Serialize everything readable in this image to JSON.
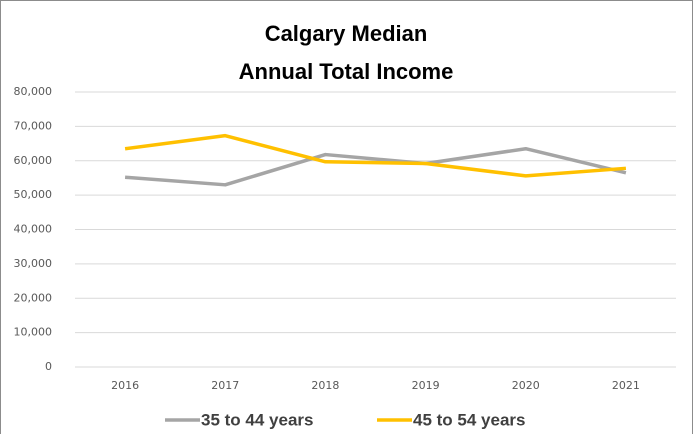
{
  "chart_data": {
    "type": "line",
    "title": [
      "Calgary Median",
      "Annual Total Income"
    ],
    "categories": [
      "2016",
      "2017",
      "2018",
      "2019",
      "2020",
      "2021"
    ],
    "series": [
      {
        "name": "35 to 44 years",
        "color": "#a5a5a5",
        "values": [
          55200,
          53000,
          61800,
          59200,
          63500,
          56500
        ]
      },
      {
        "name": "45 to 54 years",
        "color": "#ffc000",
        "values": [
          63500,
          67300,
          59700,
          59200,
          55600,
          57800
        ]
      }
    ],
    "ylim": [
      0,
      80000
    ],
    "yticks": [
      0,
      {
        "value": 10000,
        "label": "10,000"
      },
      {
        "value": 20000,
        "label": "20,000"
      },
      {
        "value": 30000,
        "label": "30,000"
      },
      {
        "value": 40000,
        "label": "40,000"
      },
      {
        "value": 50000,
        "label": "50,000"
      },
      {
        "value": 60000,
        "label": "60,000"
      },
      {
        "value": 70000,
        "label": "70,000"
      },
      {
        "value": 80000,
        "label": "80,000"
      }
    ],
    "grid": true,
    "legend": "bottom"
  }
}
